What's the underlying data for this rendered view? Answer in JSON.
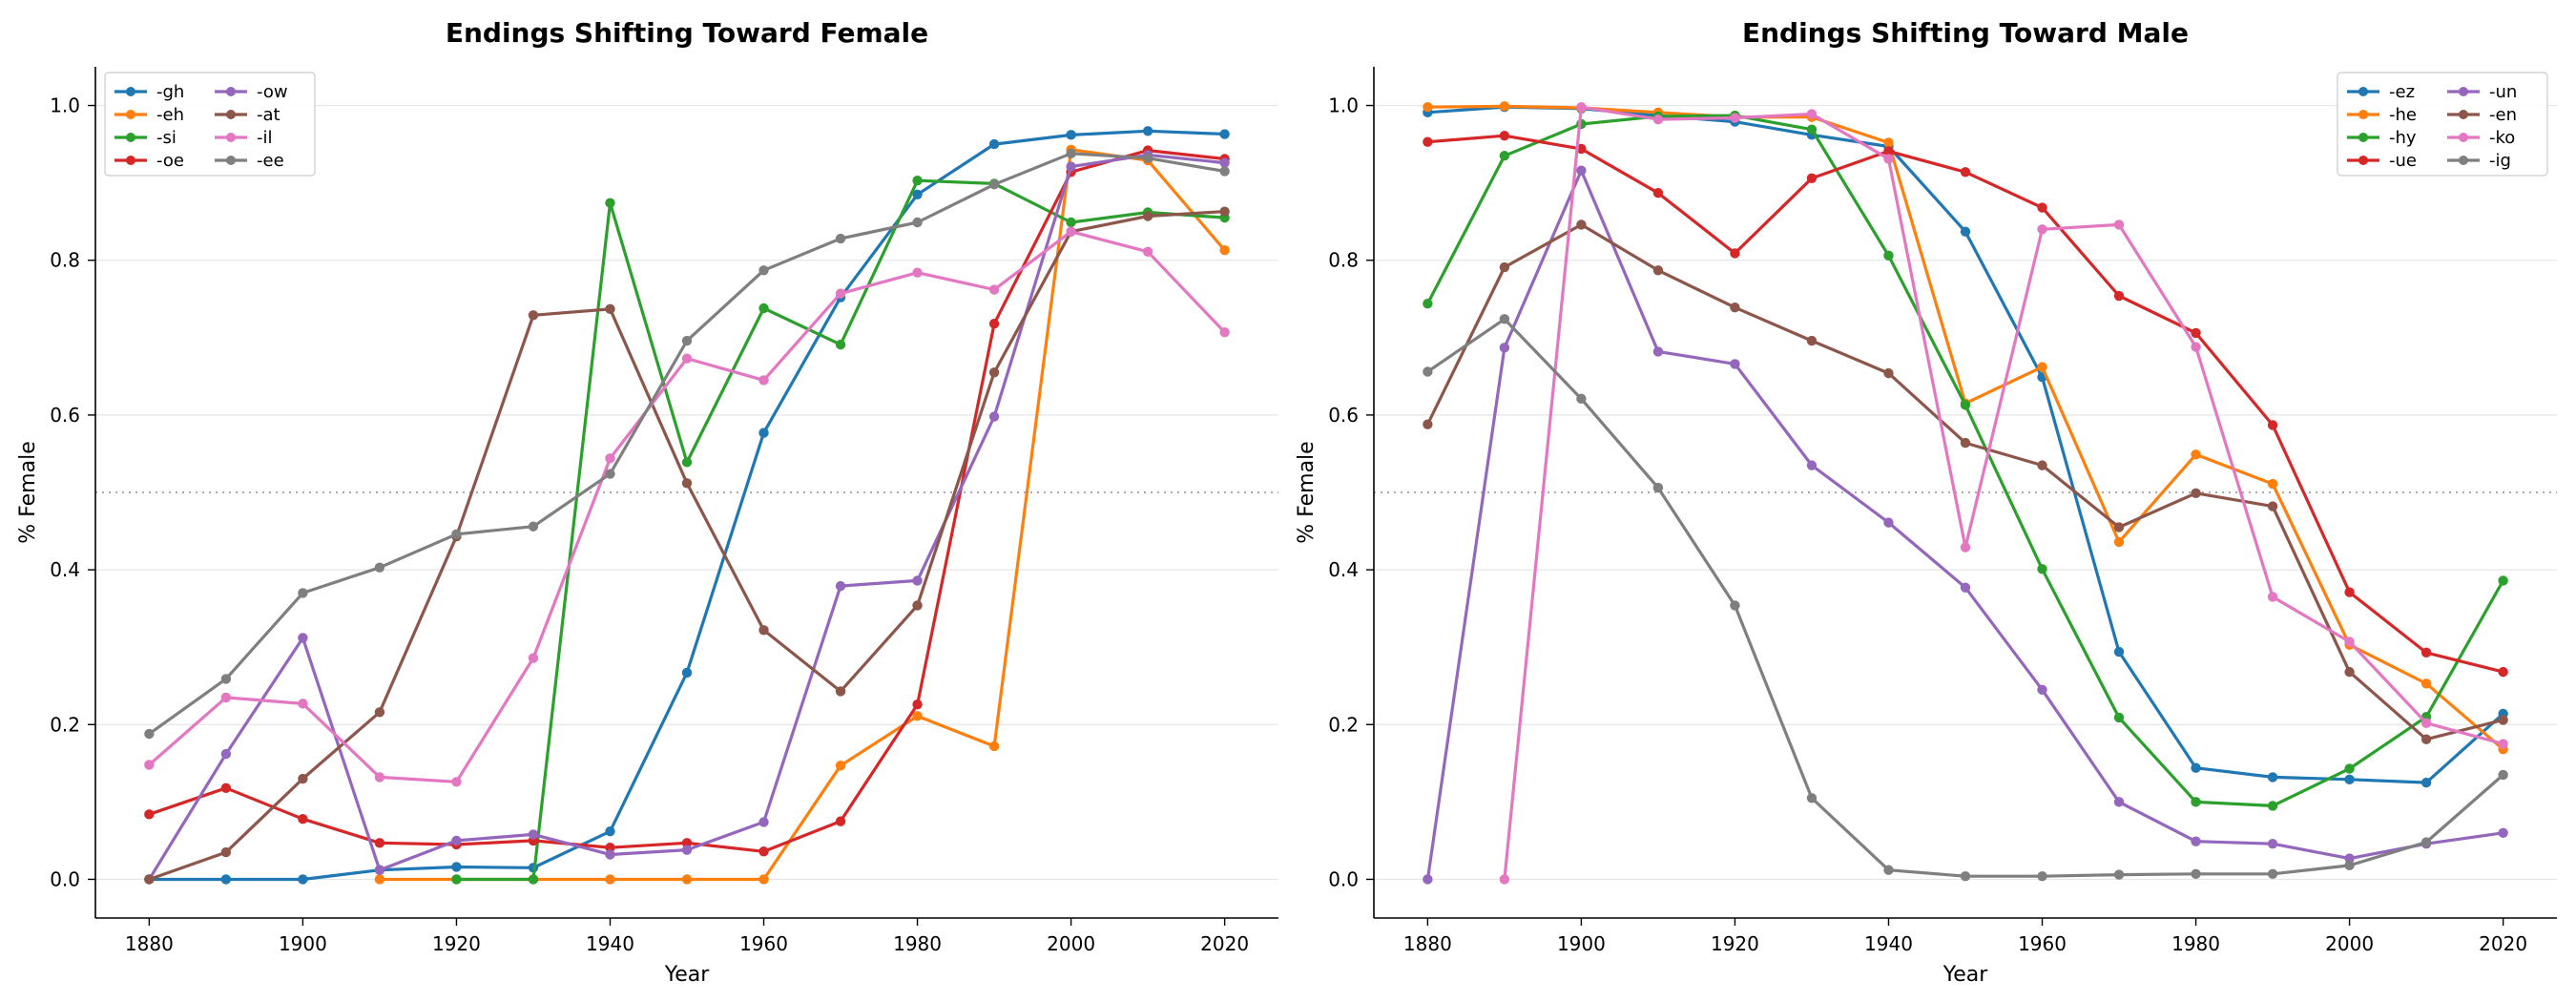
{
  "chart_data": [
    {
      "type": "line",
      "title": "Endings Shifting Toward Female",
      "xlabel": "Year",
      "ylabel": "% Female",
      "xlim": [
        1873,
        2027
      ],
      "ylim": [
        -0.05,
        1.05
      ],
      "xticks": [
        1880,
        1900,
        1920,
        1940,
        1960,
        1980,
        2000,
        2020
      ],
      "yticks": [
        0.0,
        0.2,
        0.4,
        0.6,
        0.8,
        1.0
      ],
      "grid": "y",
      "reference_line": 0.5,
      "legend_position": "upper-left",
      "legend_columns": 2,
      "series": [
        {
          "name": "-gh",
          "color": "#1f77b4",
          "x": [
            1880,
            1890,
            1900,
            1910,
            1920,
            1930,
            1940,
            1950,
            1960,
            1970,
            1980,
            1990,
            2000,
            2010,
            2020
          ],
          "y": [
            0,
            0,
            0,
            0.012,
            0.016,
            0.015,
            0.062,
            0.267,
            0.577,
            0.752,
            0.885,
            0.95,
            0.962,
            0.967,
            0.963
          ]
        },
        {
          "name": "-eh",
          "color": "#ff7f0e",
          "x": [
            1910,
            1920,
            1930,
            1940,
            1950,
            1960,
            1970,
            1980,
            1990,
            2000,
            2010,
            2020
          ],
          "y": [
            0,
            0,
            0,
            0,
            0,
            0,
            0.147,
            0.211,
            0.172,
            0.943,
            0.929,
            0.813
          ]
        },
        {
          "name": "-si",
          "color": "#2ca02c",
          "x": [
            1920,
            1930,
            1940,
            1950,
            1960,
            1970,
            1980,
            1990,
            2000,
            2010,
            2020
          ],
          "y": [
            0,
            0,
            0.874,
            0.539,
            0.738,
            0.691,
            0.903,
            0.899,
            0.849,
            0.862,
            0.855
          ]
        },
        {
          "name": "-oe",
          "color": "#d62728",
          "x": [
            1880,
            1890,
            1900,
            1910,
            1920,
            1930,
            1940,
            1950,
            1960,
            1970,
            1980,
            1990,
            2000,
            2010,
            2020
          ],
          "y": [
            0.084,
            0.118,
            0.078,
            0.047,
            0.045,
            0.05,
            0.041,
            0.047,
            0.036,
            0.075,
            0.226,
            0.718,
            0.914,
            0.942,
            0.931
          ]
        },
        {
          "name": "-ow",
          "color": "#9467bd",
          "x": [
            1880,
            1890,
            1900,
            1910,
            1920,
            1930,
            1940,
            1950,
            1960,
            1970,
            1980,
            1990,
            2000,
            2010,
            2020
          ],
          "y": [
            0,
            0.162,
            0.312,
            0.012,
            0.05,
            0.058,
            0.032,
            0.038,
            0.074,
            0.379,
            0.386,
            0.598,
            0.921,
            0.936,
            0.926
          ]
        },
        {
          "name": "-at",
          "color": "#8c564b",
          "x": [
            1880,
            1890,
            1900,
            1910,
            1920,
            1930,
            1940,
            1950,
            1960,
            1970,
            1980,
            1990,
            2000,
            2010,
            2020
          ],
          "y": [
            0,
            0.035,
            0.13,
            0.216,
            0.443,
            0.729,
            0.737,
            0.512,
            0.322,
            0.243,
            0.354,
            0.655,
            0.837,
            0.857,
            0.863
          ]
        },
        {
          "name": "-il",
          "color": "#e377c2",
          "x": [
            1880,
            1890,
            1900,
            1910,
            1920,
            1930,
            1940,
            1950,
            1960,
            1970,
            1980,
            1990,
            2000,
            2010,
            2020
          ],
          "y": [
            0.148,
            0.235,
            0.227,
            0.132,
            0.126,
            0.286,
            0.544,
            0.673,
            0.645,
            0.757,
            0.784,
            0.762,
            0.837,
            0.811,
            0.707
          ]
        },
        {
          "name": "-ee",
          "color": "#7f7f7f",
          "x": [
            1880,
            1890,
            1900,
            1910,
            1920,
            1930,
            1940,
            1950,
            1960,
            1970,
            1980,
            1990,
            2000,
            2010,
            2020
          ],
          "y": [
            0.188,
            0.259,
            0.37,
            0.403,
            0.446,
            0.456,
            0.524,
            0.696,
            0.787,
            0.828,
            0.849,
            0.898,
            0.938,
            0.932,
            0.915
          ]
        }
      ]
    },
    {
      "type": "line",
      "title": "Endings Shifting Toward Male",
      "xlabel": "Year",
      "ylabel": "% Female",
      "xlim": [
        1873,
        2027
      ],
      "ylim": [
        -0.05,
        1.05
      ],
      "xticks": [
        1880,
        1900,
        1920,
        1940,
        1960,
        1980,
        2000,
        2020
      ],
      "yticks": [
        0.0,
        0.2,
        0.4,
        0.6,
        0.8,
        1.0
      ],
      "grid": "y",
      "reference_line": 0.5,
      "legend_position": "upper-right",
      "legend_columns": 2,
      "series": [
        {
          "name": "-ez",
          "color": "#1f77b4",
          "x": [
            1880,
            1890,
            1900,
            1910,
            1920,
            1930,
            1940,
            1950,
            1960,
            1970,
            1980,
            1990,
            2000,
            2010,
            2020
          ],
          "y": [
            0.991,
            0.998,
            0.996,
            0.987,
            0.979,
            0.962,
            0.947,
            0.837,
            0.649,
            0.294,
            0.144,
            0.132,
            0.129,
            0.125,
            0.214
          ]
        },
        {
          "name": "-he",
          "color": "#ff7f0e",
          "x": [
            1880,
            1890,
            1900,
            1910,
            1920,
            1930,
            1940,
            1950,
            1960,
            1970,
            1980,
            1990,
            2000,
            2010,
            2020
          ],
          "y": [
            0.998,
            0.999,
            0.997,
            0.991,
            0.985,
            0.985,
            0.952,
            0.615,
            0.662,
            0.436,
            0.549,
            0.511,
            0.303,
            0.253,
            0.168
          ]
        },
        {
          "name": "-hy",
          "color": "#2ca02c",
          "x": [
            1880,
            1890,
            1900,
            1910,
            1920,
            1930,
            1940,
            1950,
            1960,
            1970,
            1980,
            1990,
            2000,
            2010,
            2020
          ],
          "y": [
            0.744,
            0.935,
            0.976,
            0.986,
            0.987,
            0.969,
            0.806,
            0.613,
            0.401,
            0.209,
            0.1,
            0.095,
            0.143,
            0.21,
            0.386
          ]
        },
        {
          "name": "-ue",
          "color": "#d62728",
          "x": [
            1880,
            1890,
            1900,
            1910,
            1920,
            1930,
            1940,
            1950,
            1960,
            1970,
            1980,
            1990,
            2000,
            2010,
            2020
          ],
          "y": [
            0.953,
            0.961,
            0.944,
            0.887,
            0.809,
            0.906,
            0.941,
            0.914,
            0.868,
            0.754,
            0.706,
            0.587,
            0.371,
            0.293,
            0.268
          ]
        },
        {
          "name": "-un",
          "color": "#9467bd",
          "x": [
            1880,
            1890,
            1900,
            1910,
            1920,
            1930,
            1940,
            1950,
            1960,
            1970,
            1980,
            1990,
            2000,
            2010,
            2020
          ],
          "y": [
            0,
            0.687,
            0.916,
            0.682,
            0.666,
            0.535,
            0.461,
            0.377,
            0.245,
            0.1,
            0.049,
            0.046,
            0.027,
            0.046,
            0.06
          ]
        },
        {
          "name": "-en",
          "color": "#8c564b",
          "x": [
            1880,
            1890,
            1900,
            1910,
            1920,
            1930,
            1940,
            1950,
            1960,
            1970,
            1980,
            1990,
            2000,
            2010,
            2020
          ],
          "y": [
            0.588,
            0.791,
            0.846,
            0.787,
            0.739,
            0.696,
            0.654,
            0.564,
            0.535,
            0.455,
            0.499,
            0.482,
            0.268,
            0.181,
            0.206
          ]
        },
        {
          "name": "-ko",
          "color": "#e377c2",
          "x": [
            1890,
            1900,
            1910,
            1920,
            1930,
            1940,
            1950,
            1960,
            1970,
            1980,
            1990,
            2000,
            2010,
            2020
          ],
          "y": [
            0,
            0.998,
            0.982,
            0.984,
            0.989,
            0.931,
            0.429,
            0.84,
            0.846,
            0.688,
            0.365,
            0.307,
            0.202,
            0.175
          ]
        },
        {
          "name": "-ig",
          "color": "#7f7f7f",
          "x": [
            1880,
            1890,
            1900,
            1910,
            1920,
            1930,
            1940,
            1950,
            1960,
            1970,
            1980,
            1990,
            2000,
            2010,
            2020
          ],
          "y": [
            0.656,
            0.724,
            0.621,
            0.506,
            0.354,
            0.105,
            0.012,
            0.004,
            0.004,
            0.006,
            0.007,
            0.007,
            0.018,
            0.048,
            0.135
          ]
        }
      ]
    }
  ]
}
